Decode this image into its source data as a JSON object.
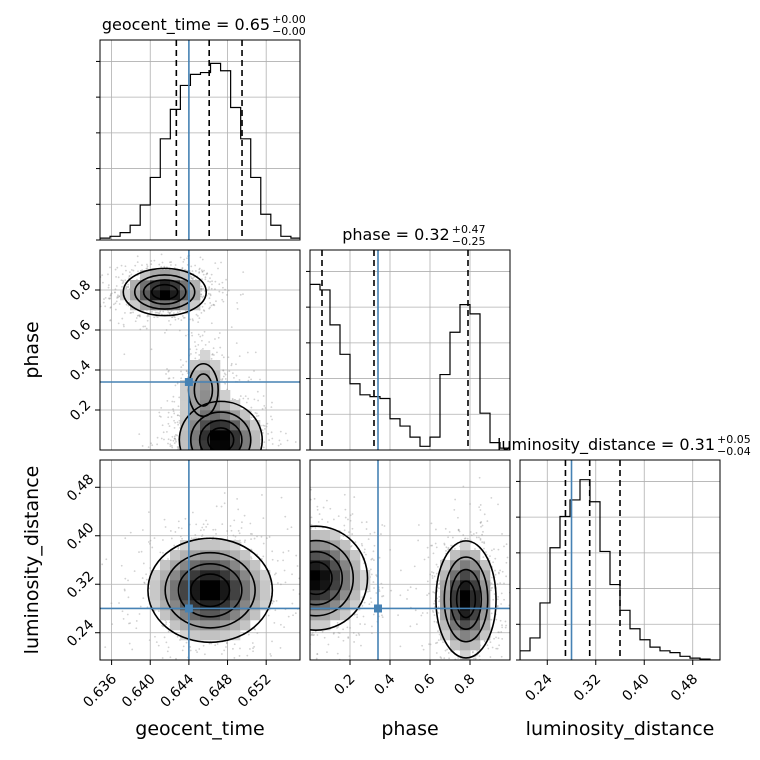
{
  "chart_data": {
    "type": "corner",
    "parameters": [
      {
        "name": "geocent_time",
        "title": {
          "lhs": "geocent_time = 0.65",
          "up": "+0.00",
          "down": "−0.00"
        },
        "range": [
          0.6348,
          0.6555
        ],
        "ticks": [
          {
            "v": 0.636,
            "label": "0.636"
          },
          {
            "v": 0.64,
            "label": "0.640"
          },
          {
            "v": 0.644,
            "label": "0.644"
          },
          {
            "v": 0.648,
            "label": "0.648"
          },
          {
            "v": 0.652,
            "label": "0.652"
          }
        ],
        "truth": 0.644,
        "quantiles": [
          0.6427,
          0.6461,
          0.6495
        ],
        "hist": {
          "edges_start": 0.6348,
          "bin_width": 0.00104,
          "counts": [
            0.01,
            0.02,
            0.04,
            0.08,
            0.19,
            0.34,
            0.55,
            0.71,
            0.84,
            0.9,
            0.91,
            0.96,
            0.92,
            0.72,
            0.55,
            0.34,
            0.14,
            0.08,
            0.02,
            0.01
          ]
        }
      },
      {
        "name": "phase",
        "title": {
          "lhs": "phase = 0.32",
          "up": "+0.47",
          "down": "−0.25"
        },
        "range": [
          0.0,
          1.0
        ],
        "ticks": [
          {
            "v": 0.2,
            "label": "0.2"
          },
          {
            "v": 0.4,
            "label": "0.4"
          },
          {
            "v": 0.6,
            "label": "0.6"
          },
          {
            "v": 0.8,
            "label": "0.8"
          }
        ],
        "truth": 0.34,
        "quantiles": [
          0.06,
          0.32,
          0.79
        ],
        "hist": {
          "edges_start": 0.0,
          "bin_width": 0.05,
          "counts": [
            0.9,
            0.87,
            0.68,
            0.52,
            0.36,
            0.3,
            0.29,
            0.28,
            0.17,
            0.13,
            0.07,
            0.02,
            0.07,
            0.41,
            0.64,
            0.79,
            0.74,
            0.2,
            0.04,
            0.01
          ]
        }
      },
      {
        "name": "luminosity_distance",
        "title": {
          "lhs": "luminosity_distance = 0.31",
          "up": "+0.05",
          "down": "−0.04"
        },
        "range": [
          0.195,
          0.525
        ],
        "ticks": [
          {
            "v": 0.24,
            "label": "0.24"
          },
          {
            "v": 0.32,
            "label": "0.32"
          },
          {
            "v": 0.4,
            "label": "0.40"
          },
          {
            "v": 0.48,
            "label": "0.48"
          }
        ],
        "truth": 0.28,
        "quantiles": [
          0.27,
          0.31,
          0.36
        ],
        "hist": {
          "edges_start": 0.195,
          "bin_width": 0.0165,
          "counts": [
            0.05,
            0.12,
            0.31,
            0.61,
            0.78,
            0.87,
            0.98,
            0.86,
            0.59,
            0.41,
            0.27,
            0.17,
            0.11,
            0.07,
            0.05,
            0.04,
            0.02,
            0.01,
            0.005,
            0.0
          ]
        }
      }
    ],
    "pairs": [
      {
        "x": "geocent_time",
        "y": "phase",
        "modes": [
          {
            "cx": 0.6415,
            "cy": 0.79,
            "sx": 0.002,
            "sy": 0.055,
            "w": 1.0
          },
          {
            "cx": 0.6473,
            "cy": 0.05,
            "sx": 0.002,
            "sy": 0.09,
            "w": 1.0
          },
          {
            "cx": 0.6455,
            "cy": 0.3,
            "sx": 0.0014,
            "sy": 0.12,
            "w": 0.35
          }
        ]
      },
      {
        "x": "geocent_time",
        "y": "luminosity_distance",
        "modes": [
          {
            "cx": 0.6462,
            "cy": 0.31,
            "sx": 0.003,
            "sy": 0.04,
            "w": 1.0
          }
        ]
      },
      {
        "x": "phase",
        "y": "luminosity_distance",
        "modes": [
          {
            "cx": 0.03,
            "cy": 0.33,
            "sx": 0.12,
            "sy": 0.04,
            "w": 1.0
          },
          {
            "cx": 0.78,
            "cy": 0.295,
            "sx": 0.07,
            "sy": 0.045,
            "w": 1.0
          }
        ]
      }
    ],
    "truth_color": "#4682b4",
    "grid": true
  }
}
